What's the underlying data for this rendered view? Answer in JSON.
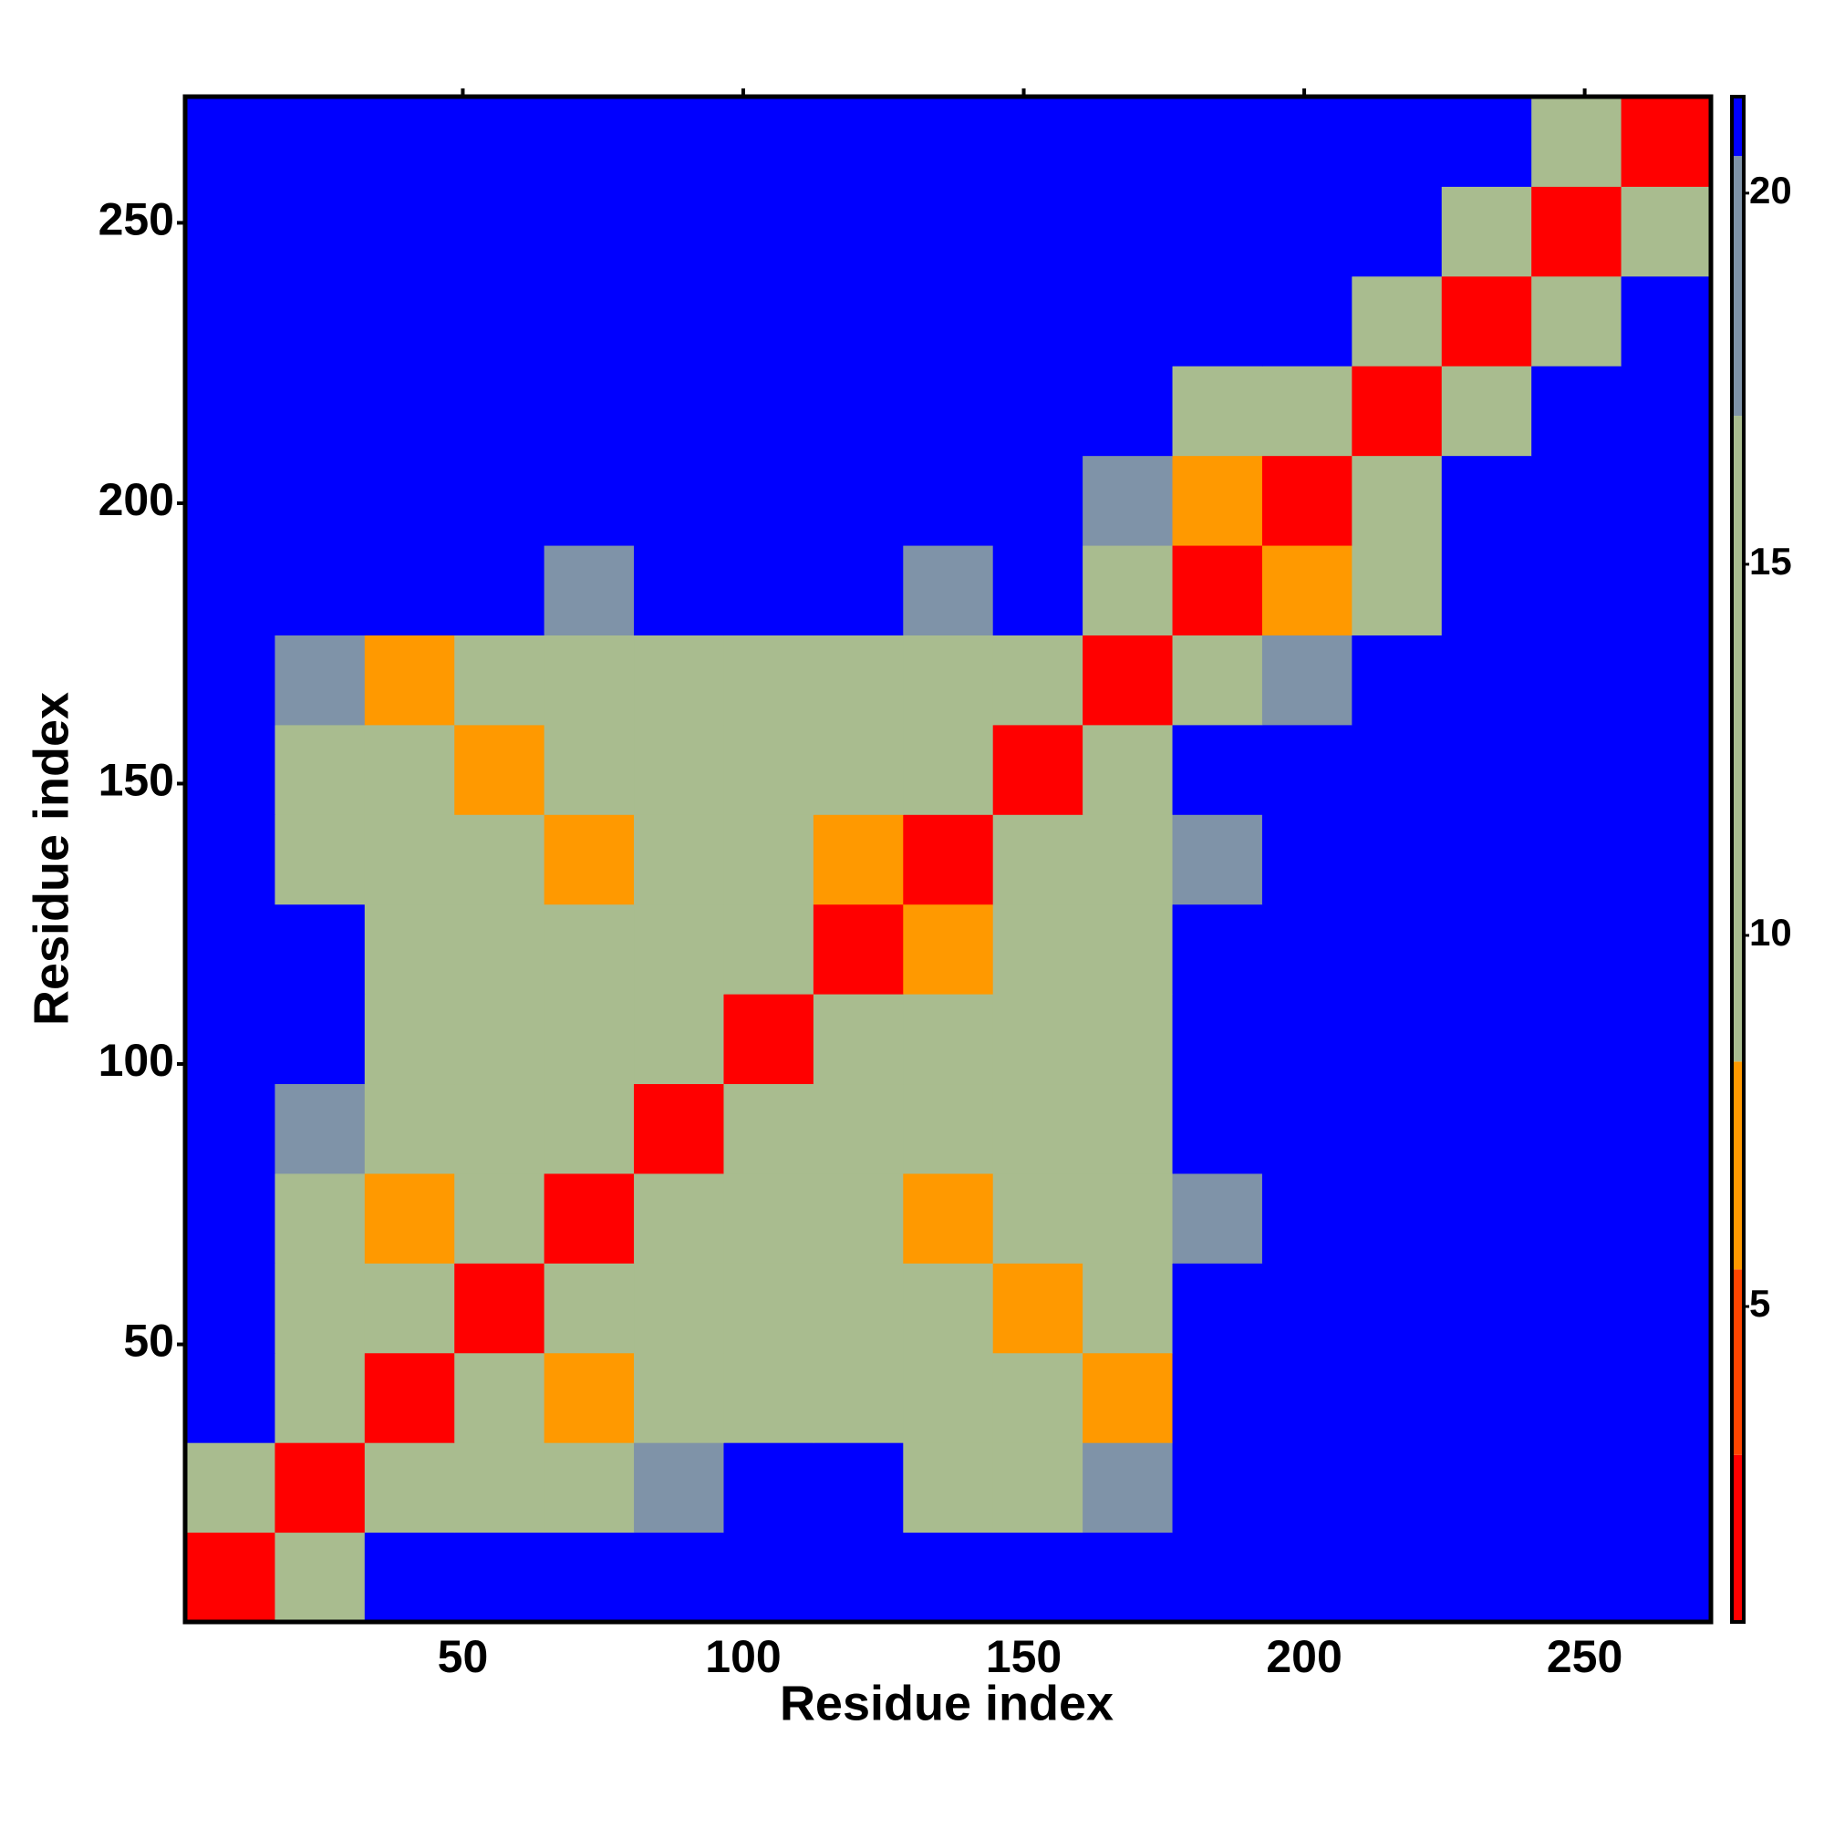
{
  "chart_data": {
    "type": "heatmap",
    "xlabel": "Residue index",
    "ylabel": "Residue index",
    "x": [
      8.5,
      24.5,
      40.5,
      56.5,
      72.5,
      88.5,
      104.5,
      120.5,
      136.5,
      152.5,
      168.5,
      184.5,
      200.5,
      216.5,
      232.5,
      248.5,
      264.5
    ],
    "y": [
      8.5,
      24.5,
      40.5,
      56.5,
      72.5,
      88.5,
      104.5,
      120.5,
      136.5,
      152.5,
      168.5,
      184.5,
      200.5,
      216.5,
      232.5,
      248.5,
      264.5
    ],
    "z": [
      [
        3,
        14,
        21,
        21,
        21,
        21,
        21,
        21,
        21,
        21,
        21,
        21,
        21,
        21,
        21,
        21,
        21
      ],
      [
        14,
        3,
        14,
        14,
        14,
        18,
        21,
        21,
        14,
        14,
        18,
        21,
        21,
        21,
        21,
        21,
        21
      ],
      [
        21,
        14,
        3,
        14,
        7,
        14,
        14,
        14,
        14,
        14,
        7,
        21,
        21,
        21,
        21,
        21,
        21
      ],
      [
        21,
        14,
        14,
        3,
        14,
        14,
        14,
        14,
        14,
        7,
        14,
        21,
        21,
        21,
        21,
        21,
        21
      ],
      [
        21,
        14,
        7,
        14,
        3,
        14,
        14,
        14,
        7,
        14,
        14,
        18,
        21,
        21,
        21,
        21,
        21
      ],
      [
        21,
        18,
        14,
        14,
        14,
        3,
        14,
        14,
        14,
        14,
        14,
        21,
        21,
        21,
        21,
        21,
        21
      ],
      [
        21,
        21,
        14,
        14,
        14,
        14,
        3,
        14,
        14,
        14,
        14,
        21,
        21,
        21,
        21,
        21,
        21
      ],
      [
        21,
        21,
        14,
        14,
        14,
        14,
        14,
        3,
        7,
        14,
        14,
        21,
        21,
        21,
        21,
        21,
        21
      ],
      [
        21,
        14,
        14,
        14,
        7,
        14,
        14,
        7,
        3,
        14,
        14,
        18,
        21,
        21,
        21,
        21,
        21
      ],
      [
        21,
        14,
        14,
        7,
        14,
        14,
        14,
        14,
        14,
        3,
        14,
        21,
        21,
        21,
        21,
        21,
        21
      ],
      [
        21,
        18,
        7,
        14,
        14,
        14,
        14,
        14,
        14,
        14,
        3,
        14,
        18,
        21,
        21,
        21,
        21
      ],
      [
        21,
        21,
        21,
        21,
        18,
        21,
        21,
        21,
        18,
        21,
        14,
        3,
        7,
        14,
        21,
        21,
        21
      ],
      [
        21,
        21,
        21,
        21,
        21,
        21,
        21,
        21,
        21,
        21,
        18,
        7,
        3,
        14,
        21,
        21,
        21
      ],
      [
        21,
        21,
        21,
        21,
        21,
        21,
        21,
        21,
        21,
        21,
        21,
        14,
        14,
        3,
        14,
        21,
        21
      ],
      [
        21,
        21,
        21,
        21,
        21,
        21,
        21,
        21,
        21,
        21,
        21,
        21,
        21,
        14,
        3,
        14,
        21
      ],
      [
        21,
        21,
        21,
        21,
        21,
        21,
        21,
        21,
        21,
        21,
        21,
        21,
        21,
        21,
        14,
        3,
        14
      ],
      [
        21,
        21,
        21,
        21,
        21,
        21,
        21,
        21,
        21,
        21,
        21,
        21,
        21,
        21,
        21,
        14,
        3
      ]
    ],
    "xlim": [
      0.5,
      272.5
    ],
    "ylim": [
      0.5,
      272.5
    ],
    "xticks": [
      50,
      100,
      150,
      200,
      250
    ],
    "yticks": [
      50,
      100,
      150,
      200,
      250
    ],
    "zlim": [
      0.75,
      21.3
    ],
    "zticks": [
      5,
      10,
      15,
      20
    ],
    "color_levels": [
      {
        "upto": 3,
        "color": "#ff0000"
      },
      {
        "upto": 5.5,
        "color": "#ff4500"
      },
      {
        "upto": 8.3,
        "color": "#ff9900"
      },
      {
        "upto": 17,
        "color": "#a9bc8f"
      },
      {
        "upto": 20.5,
        "color": "#7f93a8"
      },
      {
        "upto": 21.3,
        "color": "#0000ff"
      }
    ]
  }
}
